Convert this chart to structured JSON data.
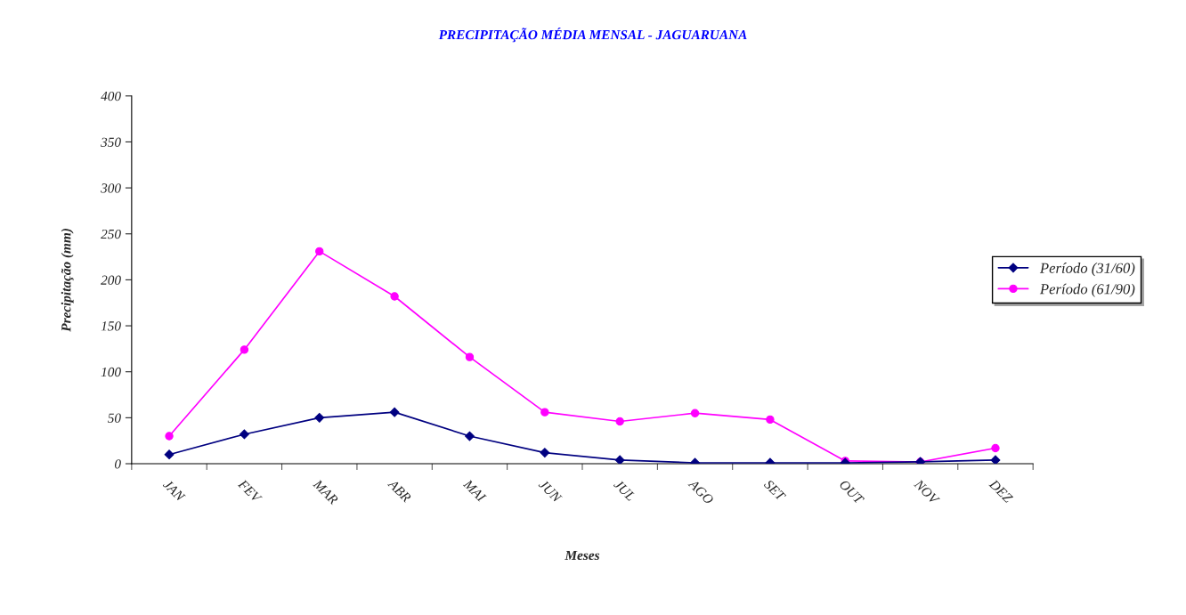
{
  "chart_data": {
    "type": "line",
    "title": "PRECIPITAÇÃO MÉDIA MENSAL - JAGUARUANA",
    "xlabel": "Meses",
    "ylabel": "Precipitação (mm)",
    "categories": [
      "JAN",
      "FEV",
      "MAR",
      "ABR",
      "MAI",
      "JUN",
      "JUL",
      "AGO",
      "SET",
      "OUT",
      "NOV",
      "DEZ"
    ],
    "series": [
      {
        "name": "Período (31/60)",
        "color": "#000080",
        "marker": "diamond",
        "values": [
          10,
          32,
          50,
          56,
          30,
          12,
          4,
          1,
          1,
          1,
          2,
          4
        ]
      },
      {
        "name": "Período (61/90)",
        "color": "#ff00ff",
        "marker": "circle",
        "values": [
          30,
          124,
          231,
          182,
          116,
          56,
          46,
          55,
          48,
          3,
          2,
          17
        ]
      }
    ],
    "ylim": [
      0,
      400
    ],
    "yticks": [
      0,
      50,
      100,
      150,
      200,
      250,
      300,
      350,
      400
    ],
    "grid": false,
    "legend": "right",
    "line_style": "solid"
  }
}
